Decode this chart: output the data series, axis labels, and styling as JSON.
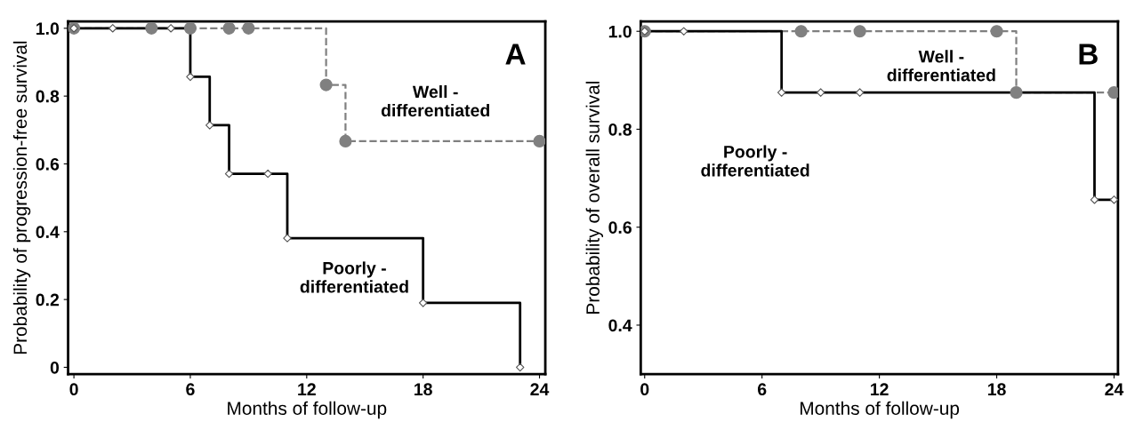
{
  "chart_data": [
    {
      "type": "step",
      "xlabel": "Months of follow-up",
      "ylabel": "Probability of progression-free survival",
      "xlim": [
        -0.3,
        24.3
      ],
      "ylim": [
        -0.02,
        1.02
      ],
      "xticks": [
        0,
        6,
        12,
        18,
        24
      ],
      "yticks": [
        {
          "value": 0,
          "label": "0"
        },
        {
          "value": 0.2,
          "label": "0.2"
        },
        {
          "value": 0.4,
          "label": "0.4"
        },
        {
          "value": 0.6,
          "label": "0.6"
        },
        {
          "value": 0.8,
          "label": "0.8"
        },
        {
          "value": 1.0,
          "label": "1.0"
        }
      ],
      "grid": false,
      "legend": false,
      "series": [
        {
          "name": "Well -\ndifferentiated",
          "color": "#808080",
          "line_style": "dashed",
          "marker": "circle",
          "x": [
            0,
            4,
            6,
            8,
            9,
            13,
            14,
            24
          ],
          "values": [
            1,
            1,
            1,
            1,
            1,
            0.833,
            0.667,
            0.667
          ]
        },
        {
          "name": "Poorly -\ndifferentiated",
          "color": "#000000",
          "line_style": "solid",
          "marker": "diamond",
          "x": [
            0,
            2,
            5,
            6,
            7,
            8,
            10,
            11,
            18,
            23
          ],
          "values": [
            1,
            1,
            1,
            0.857,
            0.714,
            0.571,
            0.571,
            0.381,
            0.19,
            0
          ]
        }
      ],
      "annotations": [
        "A"
      ]
    },
    {
      "type": "step",
      "xlabel": "Months of follow-up",
      "ylabel": "Probability of overall survival",
      "xlim": [
        -0.2,
        24.2
      ],
      "ylim": [
        0.3,
        1.02
      ],
      "xticks": [
        0,
        6,
        12,
        18,
        24
      ],
      "yticks": [
        0.4,
        0.6,
        0.8,
        {
          "value": 1.0,
          "label": "1.0"
        }
      ],
      "grid": false,
      "legend": false,
      "series": [
        {
          "name": "Well -\ndifferentiated",
          "color": "#808080",
          "line_style": "dashed",
          "marker": "circle",
          "x": [
            0,
            8,
            11,
            18,
            19,
            24
          ],
          "values": [
            1,
            1,
            1,
            1,
            0.875,
            0.875
          ]
        },
        {
          "name": "Poorly -\ndifferentiated",
          "color": "#000000",
          "line_style": "solid",
          "marker": "diamond",
          "x": [
            0,
            2,
            7,
            9,
            11,
            23,
            24
          ],
          "values": [
            1,
            1,
            0.875,
            0.875,
            0.875,
            0.656,
            0.656
          ]
        }
      ],
      "annotations": [
        "B"
      ]
    }
  ]
}
